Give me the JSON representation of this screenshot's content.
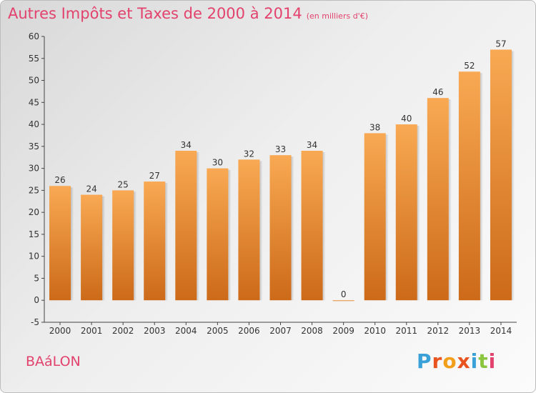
{
  "title": "Autres Impôts et Taxes de 2000 à 2014",
  "subtitle": "(en milliers d'€)",
  "commune": "BAáLON",
  "logo": "Proxiti",
  "colors": {
    "title": "#e2426d",
    "bar_light": "#f9a953",
    "bar_dark": "#cc6a19",
    "logo_letters": [
      "#3aa1d8",
      "#e8531f",
      "#f2a01c",
      "#e8531f",
      "#3aa1d8",
      "#8cc63f",
      "#e2426d"
    ]
  },
  "chart_data": {
    "type": "bar",
    "categories": [
      "2000",
      "2001",
      "2002",
      "2003",
      "2004",
      "2005",
      "2006",
      "2007",
      "2008",
      "2009",
      "2010",
      "2011",
      "2012",
      "2013",
      "2014"
    ],
    "values": [
      26,
      24,
      25,
      27,
      34,
      30,
      32,
      33,
      34,
      0,
      38,
      40,
      46,
      52,
      57
    ],
    "ylim": [
      -5,
      60
    ],
    "yticks": [
      -5,
      0,
      5,
      10,
      15,
      20,
      25,
      30,
      35,
      40,
      45,
      50,
      55,
      60
    ],
    "grid": false,
    "data_labels": true
  }
}
